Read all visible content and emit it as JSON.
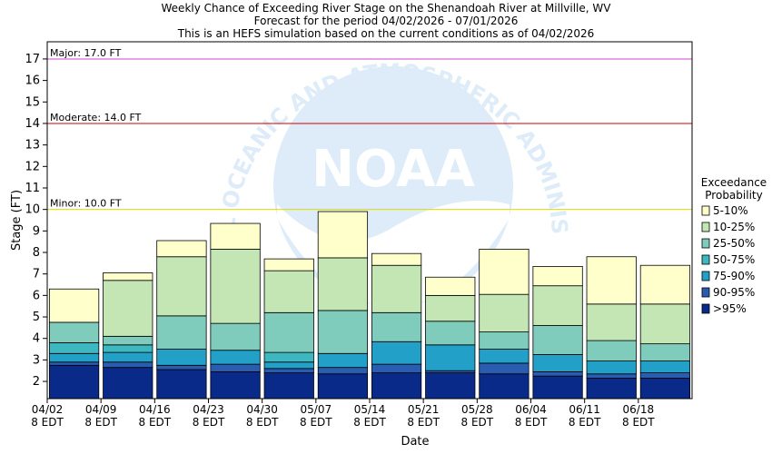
{
  "titles": {
    "line1": "Weekly Chance of Exceeding River Stage on the Shenandoah River at Millville, WV",
    "line2": "Forecast for the period 04/02/2026 - 07/01/2026",
    "line3": "This is an HEFS simulation based on the current conditions as of 04/02/2026"
  },
  "watermark": {
    "logo_text": "NOAA",
    "arc_text": "NATIONAL OCEANIC AND ATMOSPHERIC ADMINISTRATION"
  },
  "chart_data": {
    "type": "bar",
    "stacked": true,
    "xlabel": "Date",
    "ylabel": "Stage (FT)",
    "ylim": [
      1.2,
      17.8
    ],
    "yticks": [
      2,
      3,
      4,
      5,
      6,
      7,
      8,
      9,
      10,
      11,
      12,
      13,
      14,
      15,
      16,
      17
    ],
    "grid": false,
    "legend_title": [
      "Exceedance",
      "Probability"
    ],
    "legend_position": "right",
    "categories": [
      "04/02",
      "04/09",
      "04/16",
      "04/23",
      "04/30",
      "05/07",
      "05/14",
      "05/21",
      "05/28",
      "06/04",
      "06/11",
      "06/18"
    ],
    "category_sublabel": "8 EDT",
    "thresholds": [
      {
        "label": "Major: 17.0 FT",
        "value": 17.0,
        "color": "#cc44cc"
      },
      {
        "label": "Moderate: 14.0 FT",
        "value": 14.0,
        "color": "#cc0000"
      },
      {
        "label": "Minor: 10.0 FT",
        "value": 10.0,
        "color": "#dddd00"
      }
    ],
    "series": [
      {
        "name": ">95%",
        "color": "#0a2a8a",
        "tops": [
          2.75,
          2.65,
          2.55,
          2.45,
          2.4,
          2.35,
          2.4,
          2.4,
          2.35,
          2.25,
          2.15,
          2.15
        ]
      },
      {
        "name": "90-95%",
        "color": "#2a5cb0",
        "tops": [
          2.9,
          2.9,
          2.75,
          2.8,
          2.6,
          2.65,
          2.8,
          2.5,
          2.85,
          2.45,
          2.35,
          2.4
        ]
      },
      {
        "name": "75-90%",
        "color": "#22a0c8",
        "tops": [
          3.3,
          3.35,
          3.5,
          3.45,
          2.9,
          3.3,
          3.85,
          3.7,
          3.5,
          3.25,
          2.95,
          2.95
        ]
      },
      {
        "name": "50-75%",
        "color": "#3eb8c0",
        "tops": [
          3.8,
          3.7,
          3.5,
          3.45,
          3.35,
          3.3,
          3.85,
          3.7,
          3.5,
          3.25,
          2.95,
          2.95
        ]
      },
      {
        "name": "25-50%",
        "color": "#80ccbc",
        "tops": [
          4.75,
          4.1,
          5.05,
          4.7,
          5.2,
          5.3,
          5.2,
          4.8,
          4.3,
          4.6,
          3.9,
          3.75
        ]
      },
      {
        "name": "10-25%",
        "color": "#c4e6b4",
        "tops": [
          4.75,
          6.7,
          7.8,
          8.15,
          7.15,
          7.75,
          7.4,
          6.0,
          6.05,
          6.45,
          5.6,
          5.6
        ]
      },
      {
        "name": "5-10%",
        "color": "#ffffcc",
        "tops": [
          6.3,
          7.05,
          8.55,
          9.35,
          7.7,
          9.9,
          7.95,
          6.85,
          8.15,
          7.35,
          7.8,
          7.4
        ]
      }
    ]
  }
}
